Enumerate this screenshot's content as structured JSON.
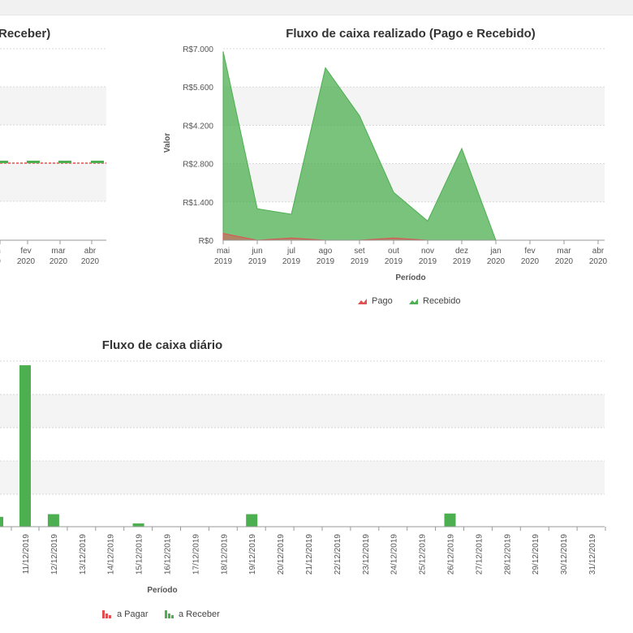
{
  "left_chart": {
    "title_partial": "Receber)",
    "x_ticks": [
      {
        "month": "n",
        "year": "0"
      },
      {
        "month": "fev",
        "year": "2020"
      },
      {
        "month": "mar",
        "year": "2020"
      },
      {
        "month": "abr",
        "year": "2020"
      }
    ],
    "colors": {
      "pagar": "#e05050",
      "receber": "#4caf50"
    }
  },
  "chart_data": [
    {
      "type": "area",
      "title": "Fluxo de caixa realizado (Pago e Recebido)",
      "xlabel": "Período",
      "ylabel": "Valor",
      "y_ticks": [
        "R$0",
        "R$1.400",
        "R$2.800",
        "R$4.200",
        "R$5.600",
        "R$7.000"
      ],
      "ylim": [
        0,
        7000
      ],
      "categories": [
        {
          "month": "mai",
          "year": "2019"
        },
        {
          "month": "jun",
          "year": "2019"
        },
        {
          "month": "jul",
          "year": "2019"
        },
        {
          "month": "ago",
          "year": "2019"
        },
        {
          "month": "set",
          "year": "2019"
        },
        {
          "month": "out",
          "year": "2019"
        },
        {
          "month": "nov",
          "year": "2019"
        },
        {
          "month": "dez",
          "year": "2019"
        },
        {
          "month": "jan",
          "year": "2020"
        },
        {
          "month": "fev",
          "year": "2020"
        },
        {
          "month": "mar",
          "year": "2020"
        },
        {
          "month": "abr",
          "year": "2020"
        }
      ],
      "series": [
        {
          "name": "Recebido",
          "color": "#4caf50",
          "values": [
            6900,
            1150,
            950,
            6300,
            4550,
            1750,
            700,
            3350,
            0,
            0,
            0,
            0
          ]
        },
        {
          "name": "Pago",
          "color": "#e05050",
          "values": [
            250,
            0,
            80,
            0,
            0,
            80,
            0,
            0,
            0,
            0,
            0,
            0
          ]
        }
      ],
      "legend": [
        {
          "label": "Pago",
          "color": "#e05050"
        },
        {
          "label": "Recebido",
          "color": "#4caf50"
        }
      ],
      "legend_position": "bottom-center",
      "grid": true
    },
    {
      "type": "bar",
      "title": "Fluxo de caixa diário",
      "xlabel": "Período",
      "categories": [
        "11/12/2019",
        "12/12/2019",
        "13/12/2019",
        "14/12/2019",
        "15/12/2019",
        "16/12/2019",
        "17/12/2019",
        "18/12/2019",
        "19/12/2019",
        "20/12/2019",
        "21/12/2019",
        "22/12/2019",
        "23/12/2019",
        "24/12/2019",
        "25/12/2019",
        "26/12/2019",
        "27/12/2019",
        "28/12/2019",
        "29/12/2019",
        "30/12/2019",
        "31/12/2019"
      ],
      "series": [
        {
          "name": "a Receber",
          "color": "#4caf50",
          "values": [
            4.9,
            0.38,
            0,
            0,
            0.1,
            0,
            0,
            0,
            0.38,
            0,
            0,
            0,
            0,
            0,
            0,
            0.4,
            0,
            0,
            0,
            0,
            0
          ]
        }
      ],
      "partial_left_bar_value": 0.3,
      "legend": [
        {
          "label": "a Pagar",
          "color": "#e05050"
        },
        {
          "label": "a Receber",
          "color": "#4caf50"
        }
      ],
      "legend_position": "bottom-center",
      "grid": true
    }
  ]
}
